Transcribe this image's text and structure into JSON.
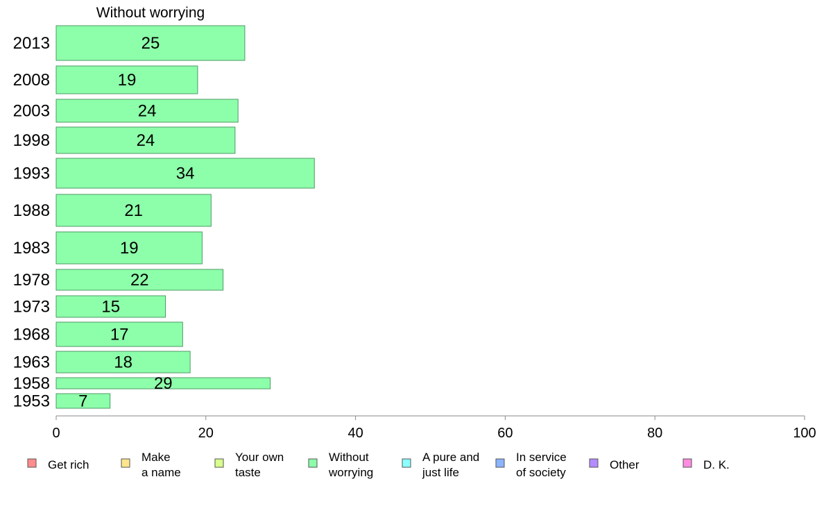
{
  "chart_data": {
    "type": "bar",
    "orientation": "horizontal",
    "title": "Without worrying",
    "xlabel": "",
    "ylabel": "",
    "xlim": [
      0,
      100
    ],
    "xticks": [
      0,
      20,
      40,
      60,
      80,
      100
    ],
    "grid": false,
    "categories": [
      "2013",
      "2008",
      "2003",
      "1998",
      "1993",
      "1988",
      "1983",
      "1978",
      "1973",
      "1968",
      "1963",
      "1958",
      "1953"
    ],
    "series": [
      {
        "name": "Without worrying",
        "color": "#8dffaa",
        "values": [
          25.2,
          18.9,
          24.3,
          23.9,
          34.5,
          20.7,
          19.5,
          22.3,
          14.6,
          16.9,
          17.9,
          28.6,
          7.2
        ],
        "labels": [
          "25",
          "19",
          "24",
          "24",
          "34",
          "21",
          "19",
          "22",
          "15",
          "17",
          "18",
          "29",
          "7"
        ]
      }
    ],
    "legend": {
      "placement": "bottom",
      "items": [
        {
          "lines": [
            "Get rich"
          ],
          "color": "#ff8c8c"
        },
        {
          "lines": [
            "Make",
            "a name"
          ],
          "color": "#ffe58c"
        },
        {
          "lines": [
            "Your own",
            "taste"
          ],
          "color": "#d8ff8c"
        },
        {
          "lines": [
            "Without",
            "worrying"
          ],
          "color": "#8cffaa"
        },
        {
          "lines": [
            "A pure and",
            "just life"
          ],
          "color": "#8cffff"
        },
        {
          "lines": [
            "In service",
            "of society"
          ],
          "color": "#8cb4ff"
        },
        {
          "lines": [
            "Other"
          ],
          "color": "#b48cff"
        },
        {
          "lines": [
            "D. K."
          ],
          "color": "#ff8ce0"
        }
      ]
    }
  }
}
